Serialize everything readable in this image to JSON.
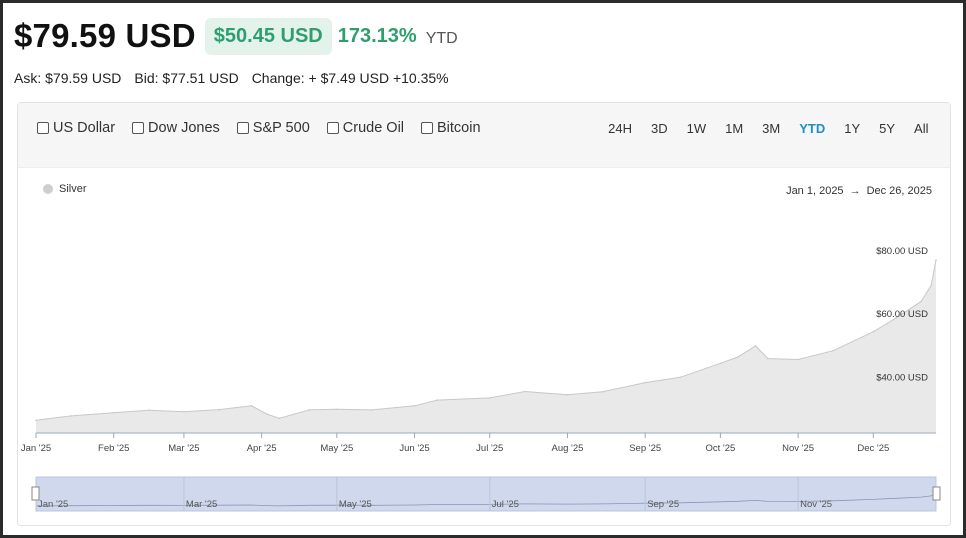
{
  "header": {
    "price": "$79.59 USD",
    "change_badge": "$50.45 USD",
    "change_pct": "173.13%",
    "period": "YTD"
  },
  "quote": {
    "ask": "Ask: $79.59 USD",
    "bid": "Bid: $77.51 USD",
    "change": "Change: + $7.49 USD +10.35%"
  },
  "compare": [
    "US Dollar",
    "Dow Jones",
    "S&P 500",
    "Crude Oil",
    "Bitcoin"
  ],
  "ranges": [
    "24H",
    "3D",
    "1W",
    "1M",
    "3M",
    "YTD",
    "1Y",
    "5Y",
    "All"
  ],
  "active_range": "YTD",
  "date_range": {
    "start": "Jan 1, 2025",
    "arrow": "→",
    "end": "Dec 26, 2025"
  },
  "colors": {
    "accent": "#1a8fc9",
    "positive": "#2f9e6f",
    "area": "#e9e9e9",
    "line": "#c8c8c8",
    "navigator": "#cfd8ec"
  },
  "chart_data": {
    "type": "area",
    "legend": [
      "Silver"
    ],
    "legend_placement": "top-left",
    "ylim": [
      25,
      85
    ],
    "y_ticks": [
      40,
      60,
      80
    ],
    "y_tick_labels": [
      "$40.00 USD",
      "$60.00 USD",
      "$80.00 USD"
    ],
    "x_ticks": [
      "2025-01-01",
      "2025-02-01",
      "2025-03-01",
      "2025-04-01",
      "2025-05-01",
      "2025-06-01",
      "2025-07-01",
      "2025-08-01",
      "2025-09-01",
      "2025-10-01",
      "2025-11-01",
      "2025-12-01"
    ],
    "x_tick_labels": [
      "Jan '25",
      "Feb '25",
      "Mar '25",
      "Apr '25",
      "May '25",
      "Jun '25",
      "Jul '25",
      "Aug '25",
      "Sep '25",
      "Oct '25",
      "Nov '25",
      "Dec '25"
    ],
    "navigator_labels": [
      "Jan '25",
      "Mar '25",
      "May '25",
      "Jul '25",
      "Sep '25",
      "Nov '25"
    ],
    "navigator_dates": [
      "2025-01-01",
      "2025-03-01",
      "2025-05-01",
      "2025-07-01",
      "2025-09-01",
      "2025-11-01"
    ],
    "series": [
      {
        "name": "Silver",
        "x": [
          "2025-01-01",
          "2025-01-15",
          "2025-02-01",
          "2025-02-15",
          "2025-03-01",
          "2025-03-15",
          "2025-03-28",
          "2025-04-03",
          "2025-04-08",
          "2025-04-20",
          "2025-05-01",
          "2025-05-15",
          "2025-06-01",
          "2025-06-10",
          "2025-07-01",
          "2025-07-15",
          "2025-08-01",
          "2025-08-15",
          "2025-09-01",
          "2025-09-15",
          "2025-10-01",
          "2025-10-08",
          "2025-10-15",
          "2025-10-20",
          "2025-11-01",
          "2025-11-15",
          "2025-12-01",
          "2025-12-10",
          "2025-12-20",
          "2025-12-24",
          "2025-12-26"
        ],
        "values": [
          29.0,
          30.4,
          31.4,
          32.2,
          31.7,
          32.4,
          33.6,
          31.0,
          29.6,
          32.3,
          32.5,
          32.3,
          33.6,
          35.4,
          36.1,
          38.1,
          37.1,
          38.0,
          40.9,
          42.6,
          47.0,
          49.0,
          52.5,
          48.5,
          48.2,
          51.0,
          57.0,
          61.3,
          66.5,
          71.5,
          79.59
        ]
      }
    ]
  }
}
